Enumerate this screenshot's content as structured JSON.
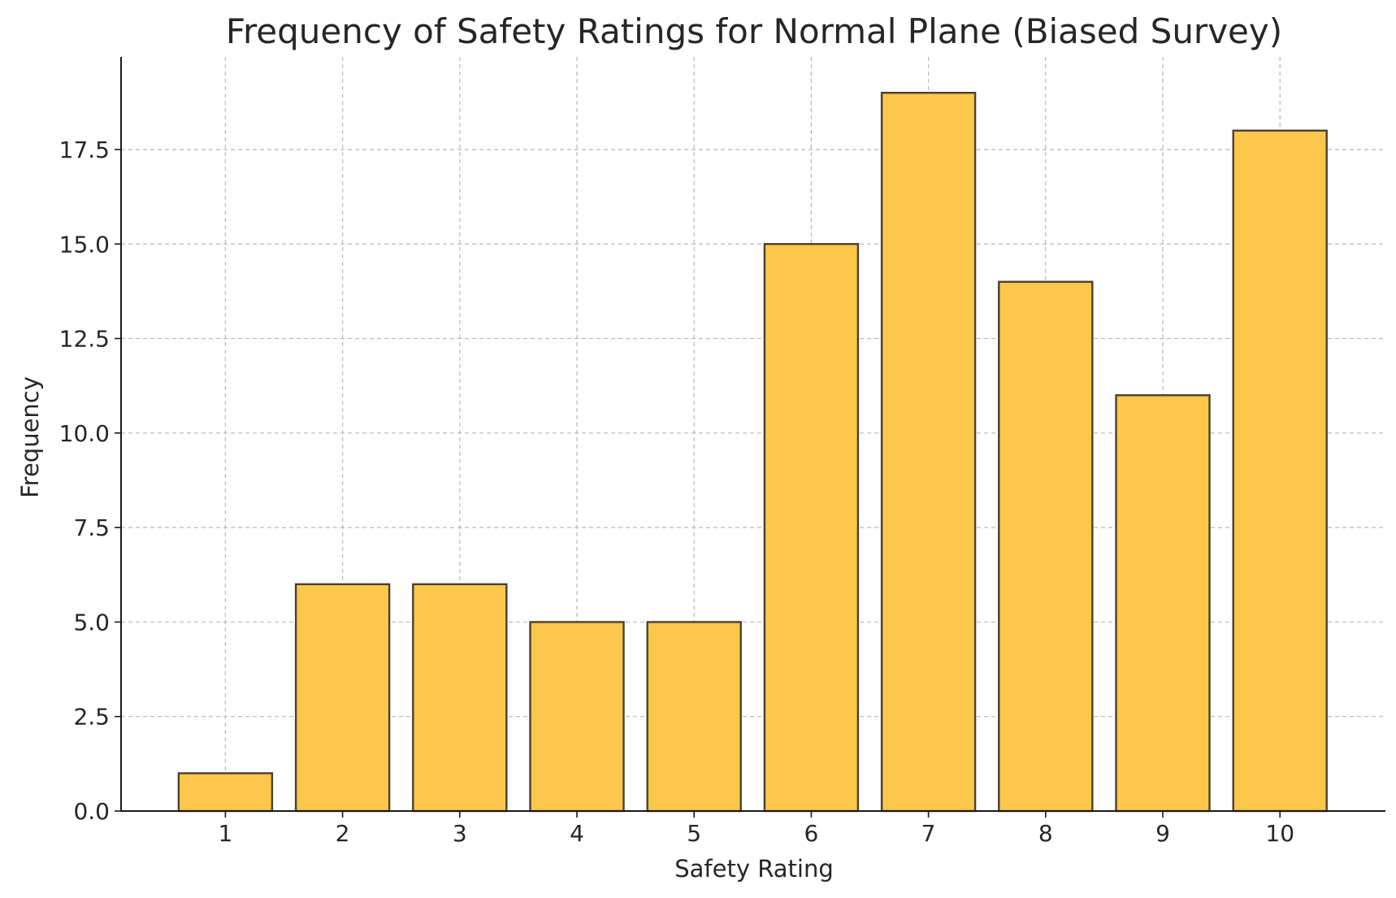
{
  "chart_data": {
    "type": "bar",
    "title": "Frequency of Safety Ratings for Normal Plane (Biased Survey)",
    "xlabel": "Safety Rating",
    "ylabel": "Frequency",
    "categories": [
      "1",
      "2",
      "3",
      "4",
      "5",
      "6",
      "7",
      "8",
      "9",
      "10"
    ],
    "values": [
      1,
      6,
      6,
      5,
      5,
      15,
      19,
      14,
      11,
      18
    ],
    "ylim": [
      0,
      19.95
    ],
    "y_ticks": [
      "0.0",
      "2.5",
      "5.0",
      "7.5",
      "10.0",
      "12.5",
      "15.0",
      "17.5"
    ],
    "grid": true,
    "colors": {
      "bar_fill": "#FDC74B",
      "bar_edge": "#4A4030"
    }
  }
}
